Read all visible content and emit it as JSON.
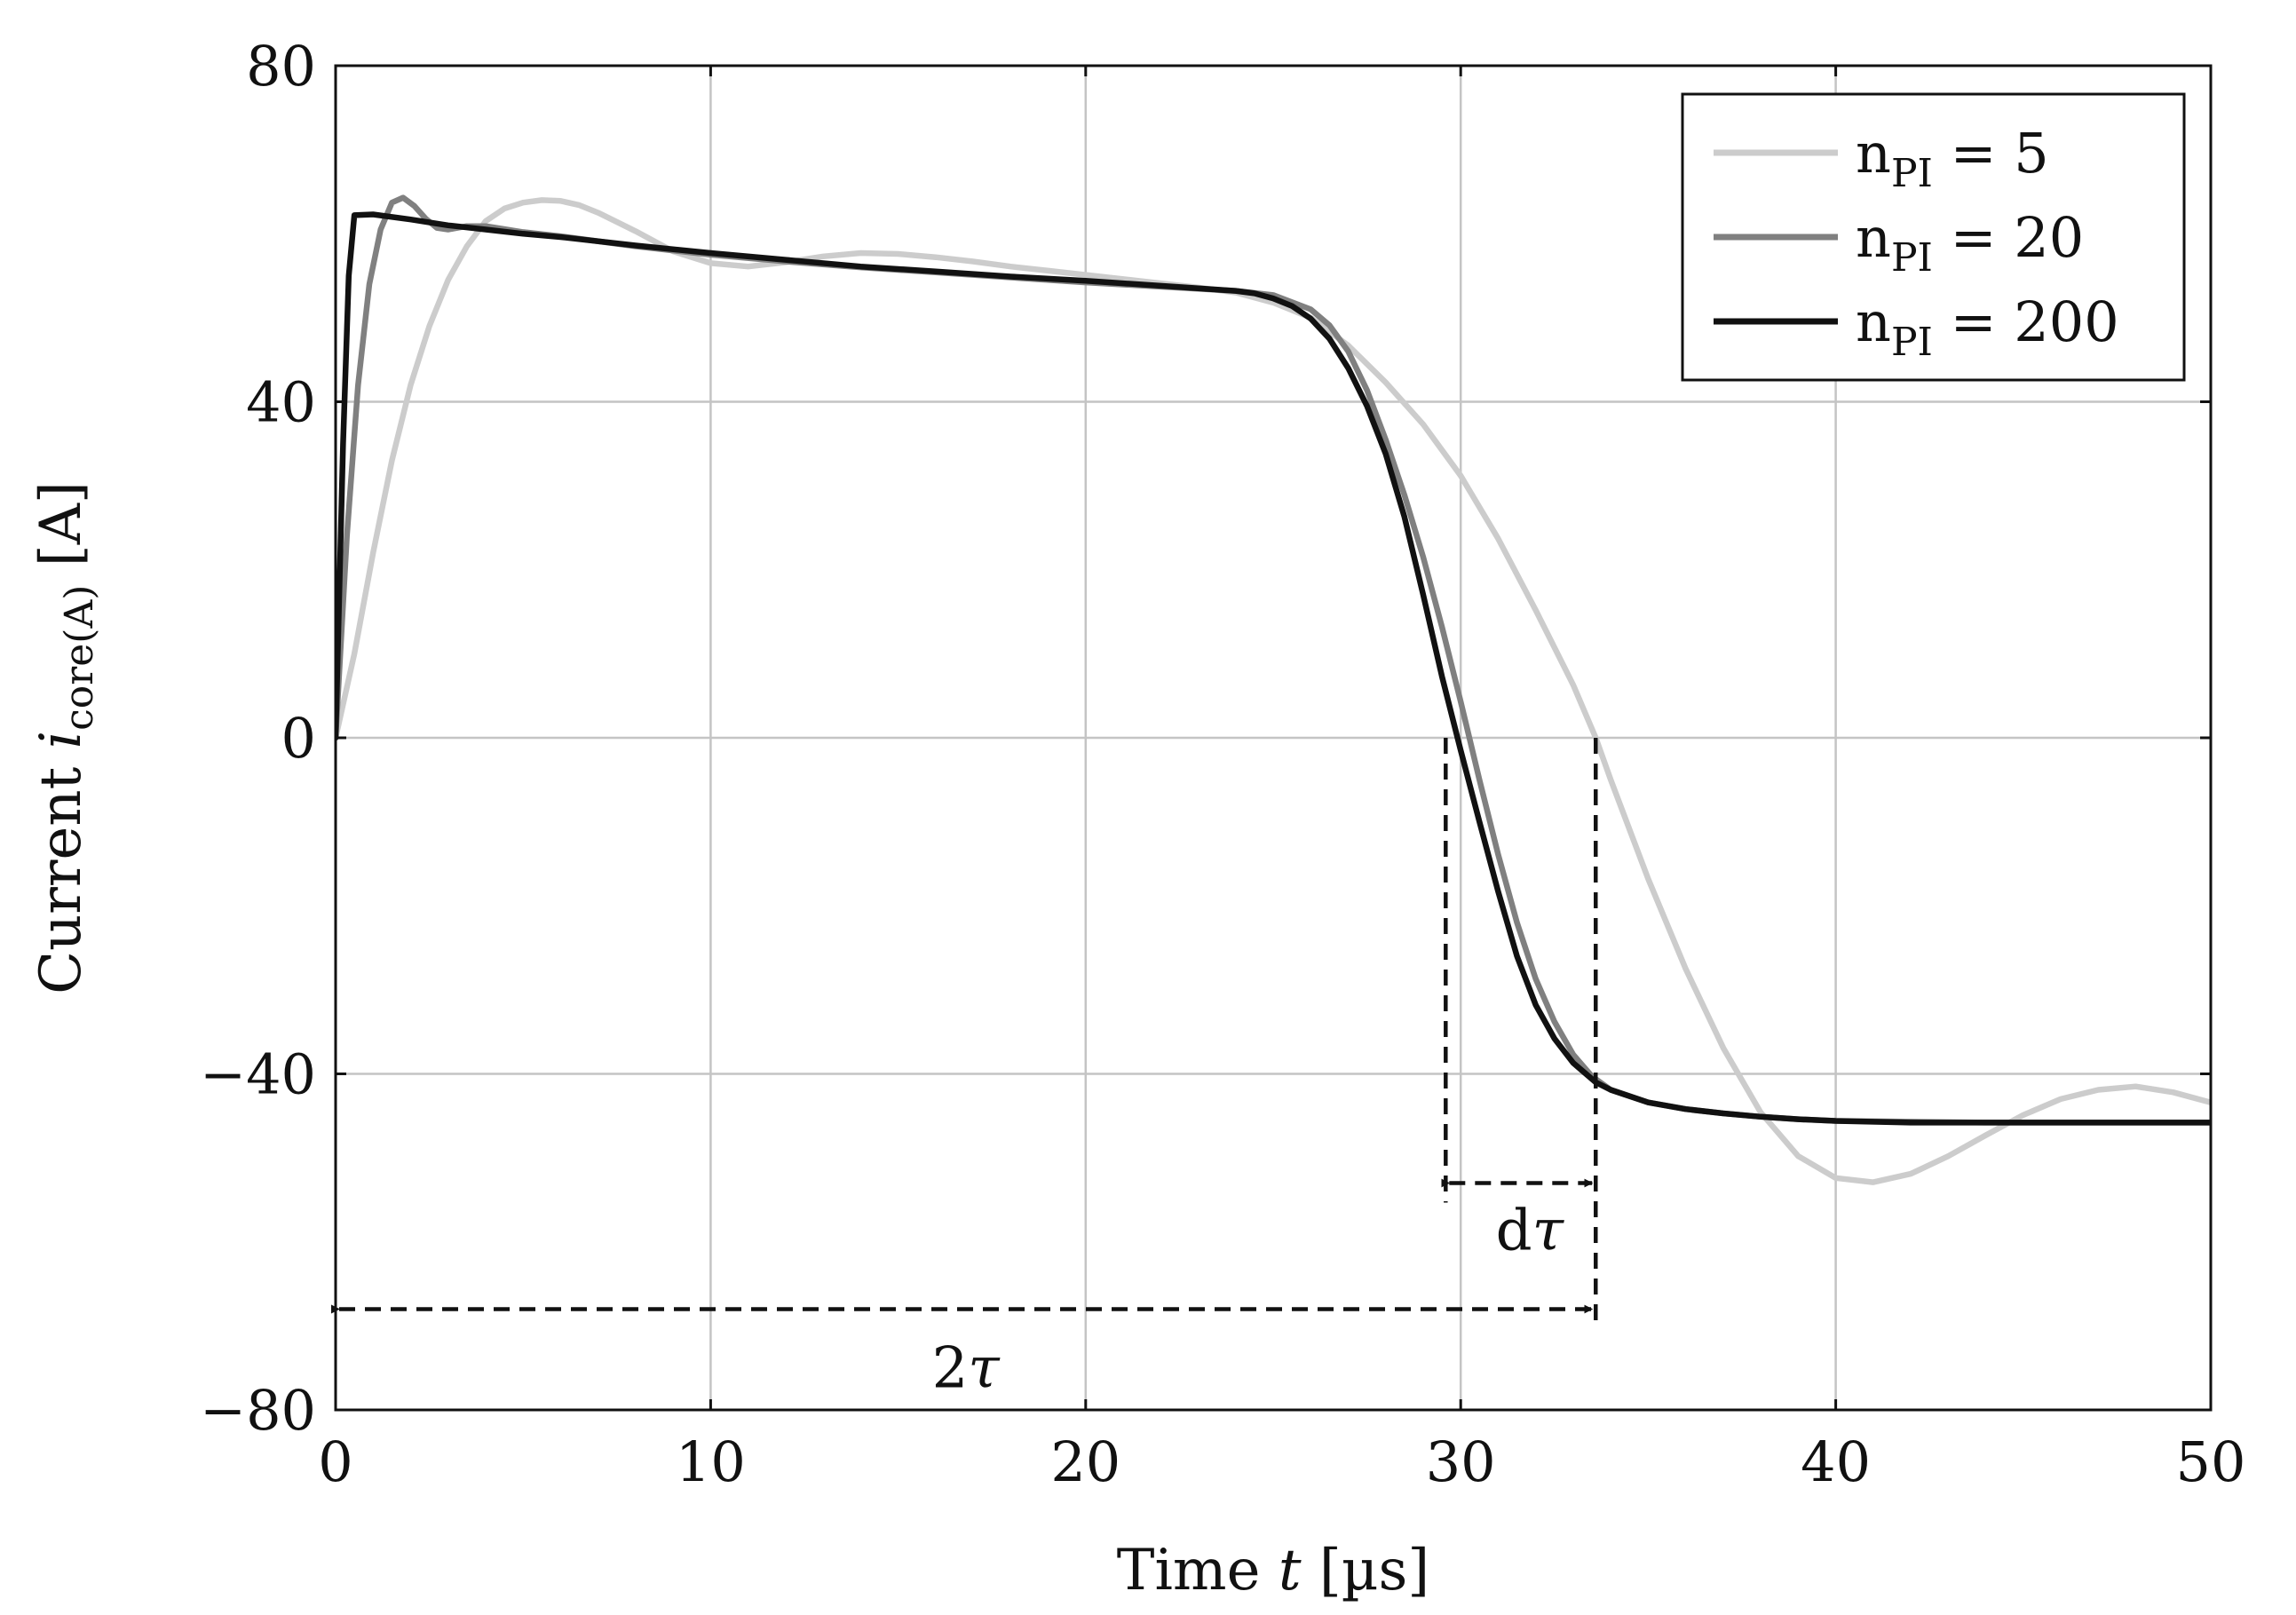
{
  "chart_data": {
    "type": "line",
    "title": "",
    "xlabel": {
      "prefix": "Time ",
      "var": "t",
      "unit": " [µs]"
    },
    "ylabel": {
      "prefix": "Current ",
      "var": "i",
      "sub": "core(A)",
      "unit": " [A]"
    },
    "xlim": [
      0,
      50
    ],
    "ylim": [
      -80,
      80
    ],
    "xticks": [
      0,
      10,
      20,
      30,
      40,
      50
    ],
    "yticks": [
      -80,
      -40,
      0,
      40,
      80
    ],
    "xtick_labels": [
      "0",
      "10",
      "20",
      "30",
      "40",
      "50"
    ],
    "ytick_labels": [
      "−80",
      "−40",
      "0",
      "40",
      "80"
    ],
    "grid": true,
    "legend_position": "top-right",
    "series": [
      {
        "name": "n_PI = 5",
        "label": {
          "base": "n",
          "sub": "PI",
          "rest": " = 5"
        },
        "color": "#cccccc",
        "x": [
          0,
          0.5,
          1,
          1.5,
          2,
          2.5,
          3,
          3.5,
          4,
          4.5,
          5,
          5.5,
          6,
          6.5,
          7,
          8,
          9,
          10,
          11,
          12,
          13,
          14,
          15,
          16,
          17,
          18,
          19,
          20,
          21,
          22,
          23,
          24,
          25,
          26,
          27,
          28,
          29,
          30,
          31,
          32,
          33,
          33.6,
          34,
          35,
          36,
          37,
          38,
          39,
          40,
          41,
          42,
          43,
          44,
          45,
          46,
          47,
          48,
          49,
          50
        ],
        "y": [
          0,
          10,
          22,
          33,
          42,
          49,
          54.5,
          58.5,
          61.5,
          63,
          63.7,
          64,
          63.9,
          63.4,
          62.5,
          60.3,
          57.9,
          56.5,
          56.1,
          56.6,
          57.3,
          57.7,
          57.6,
          57.2,
          56.7,
          56.1,
          55.6,
          55.1,
          54.6,
          54.1,
          53.6,
          53,
          51.8,
          50,
          46.7,
          42.3,
          37.3,
          31.2,
          23.7,
          15.2,
          6.3,
          0,
          -5,
          -16.8,
          -27.5,
          -36.9,
          -44.6,
          -49.8,
          -52.4,
          -52.9,
          -51.9,
          -49.8,
          -47.3,
          -44.9,
          -43,
          -41.9,
          -41.5,
          -42.2,
          -43.4
        ]
      },
      {
        "name": "n_PI = 20",
        "label": {
          "base": "n",
          "sub": "PI",
          "rest": " = 20"
        },
        "color": "#808080",
        "x": [
          0,
          0.3,
          0.6,
          0.9,
          1.2,
          1.5,
          1.8,
          2.1,
          2.4,
          2.7,
          3,
          3.5,
          4,
          5,
          6,
          8,
          10,
          12,
          14,
          16,
          18,
          20,
          22,
          24,
          25,
          26,
          26.5,
          27,
          27.5,
          28,
          28.5,
          29,
          29.5,
          30,
          30.5,
          31,
          31.5,
          32,
          32.5,
          33,
          33.5,
          34,
          35,
          36,
          37,
          38,
          39,
          40,
          42,
          44,
          46,
          48,
          50
        ],
        "y": [
          0,
          24,
          42,
          54,
          60.5,
          63.7,
          64.3,
          63.3,
          61.8,
          60.7,
          60.5,
          60.9,
          60.9,
          60.2,
          59.7,
          58.5,
          57.5,
          56.7,
          56,
          55.4,
          54.8,
          54.2,
          53.7,
          53.2,
          52.7,
          51,
          49.1,
          46,
          41.4,
          35.5,
          28.9,
          21.5,
          13.2,
          4.3,
          -5,
          -13.9,
          -22,
          -28.7,
          -33.8,
          -37.7,
          -40.3,
          -41.9,
          -43.4,
          -44.2,
          -44.7,
          -45.1,
          -45.4,
          -45.6,
          -45.7,
          -45.8,
          -45.8,
          -45.8,
          -45.8
        ]
      },
      {
        "name": "n_PI = 200",
        "label": {
          "base": "n",
          "sub": "PI",
          "rest": " = 200"
        },
        "color": "#111111",
        "x": [
          0,
          0.2,
          0.35,
          0.5,
          1,
          2,
          3,
          4,
          5,
          6,
          8,
          10,
          12,
          14,
          16,
          18,
          20,
          22,
          23,
          24,
          24.5,
          25,
          25.5,
          26,
          26.5,
          27,
          27.5,
          28,
          28.5,
          29,
          29.5,
          30,
          30.5,
          31,
          31.5,
          32,
          32.5,
          33,
          33.6,
          34,
          35,
          36,
          37,
          38,
          39,
          40,
          42,
          44,
          46,
          48,
          50
        ],
        "y": [
          0,
          35,
          55,
          62.2,
          62.3,
          61.7,
          61,
          60.5,
          60,
          59.6,
          58.6,
          57.7,
          56.9,
          56.1,
          55.5,
          54.9,
          54.4,
          53.8,
          53.5,
          53.2,
          52.9,
          52.3,
          51.4,
          49.9,
          47.5,
          44,
          39.5,
          33.8,
          26.3,
          17,
          7.3,
          -1.5,
          -10,
          -18.3,
          -26,
          -31.8,
          -35.8,
          -38.7,
          -41,
          -41.9,
          -43.4,
          -44.2,
          -44.7,
          -45.1,
          -45.4,
          -45.6,
          -45.8,
          -45.8,
          -45.8,
          -45.8,
          -45.8
        ]
      }
    ],
    "annotations": [
      {
        "label": "dτ",
        "x_from": 29.6,
        "x_to": 33.6,
        "y": -53
      },
      {
        "label": "2τ",
        "x_from": 0,
        "x_to": 33.6,
        "y": -68
      }
    ]
  }
}
